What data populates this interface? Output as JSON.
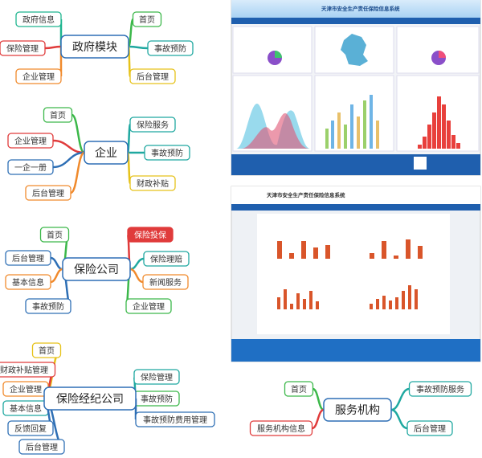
{
  "maps": [
    {
      "center": {
        "label": "政府模块",
        "color": "#2e6fb5"
      },
      "nodes": [
        {
          "label": "政府信息",
          "color": "#1fb58f"
        },
        {
          "label": "保险管理",
          "color": "#e03b3b"
        },
        {
          "label": "企业管理",
          "color": "#f08a2c"
        },
        {
          "label": "首页",
          "color": "#3cb84a"
        },
        {
          "label": "事故预防",
          "color": "#1fa8a0"
        },
        {
          "label": "后台管理",
          "color": "#e6c21a"
        }
      ]
    },
    {
      "center": {
        "label": "企业",
        "color": "#2e6fb5"
      },
      "nodes": [
        {
          "label": "首页",
          "color": "#3cb84a"
        },
        {
          "label": "企业管理",
          "color": "#e03b3b"
        },
        {
          "label": "一企一册",
          "color": "#2e6fb5"
        },
        {
          "label": "后台管理",
          "color": "#f08a2c"
        },
        {
          "label": "保险服务",
          "color": "#1fa8a0"
        },
        {
          "label": "事故预防",
          "color": "#1fa8a0"
        },
        {
          "label": "财政补贴",
          "color": "#e6c21a"
        }
      ]
    },
    {
      "center": {
        "label": "保险公司",
        "color": "#2e6fb5"
      },
      "nodes": [
        {
          "label": "首页",
          "color": "#3cb84a"
        },
        {
          "label": "后台管理",
          "color": "#2e6fb5"
        },
        {
          "label": "基本信息",
          "color": "#f08a2c"
        },
        {
          "label": "事故预防",
          "color": "#2e6fb5"
        },
        {
          "label": "保险投保",
          "color": "#e03b3b",
          "filled": true
        },
        {
          "label": "保险理赔",
          "color": "#1fa8a0"
        },
        {
          "label": "新闻服务",
          "color": "#f08a2c"
        },
        {
          "label": "企业管理",
          "color": "#3cb84a"
        }
      ]
    },
    {
      "center": {
        "label": "保险经纪公司",
        "color": "#2e6fb5"
      },
      "nodes": [
        {
          "label": "首页",
          "color": "#e6c21a"
        },
        {
          "label": "财政补贴管理",
          "color": "#e03b3b"
        },
        {
          "label": "企业管理",
          "color": "#f08a2c"
        },
        {
          "label": "基本信息",
          "color": "#1fa8a0"
        },
        {
          "label": "反馈回复",
          "color": "#2e6fb5"
        },
        {
          "label": "后台管理",
          "color": "#2e6fb5"
        },
        {
          "label": "保险管理",
          "color": "#1fa8a0"
        },
        {
          "label": "事故预防",
          "color": "#3cb84a"
        },
        {
          "label": "事故预防费用管理",
          "color": "#2e6fb5"
        }
      ]
    },
    {
      "center": {
        "label": "服务机构",
        "color": "#2e6fb5"
      },
      "nodes": [
        {
          "label": "首页",
          "color": "#3cb84a"
        },
        {
          "label": "服务机构信息",
          "color": "#e03b3b"
        },
        {
          "label": "事故预防服务",
          "color": "#1fa8a0"
        },
        {
          "label": "后台管理",
          "color": "#1fa8a0"
        }
      ]
    }
  ],
  "screenshots": [
    {
      "title": "天津市安全生产责任保险信息系统"
    },
    {
      "title": "天津市安全生产责任保险信息系统"
    }
  ]
}
